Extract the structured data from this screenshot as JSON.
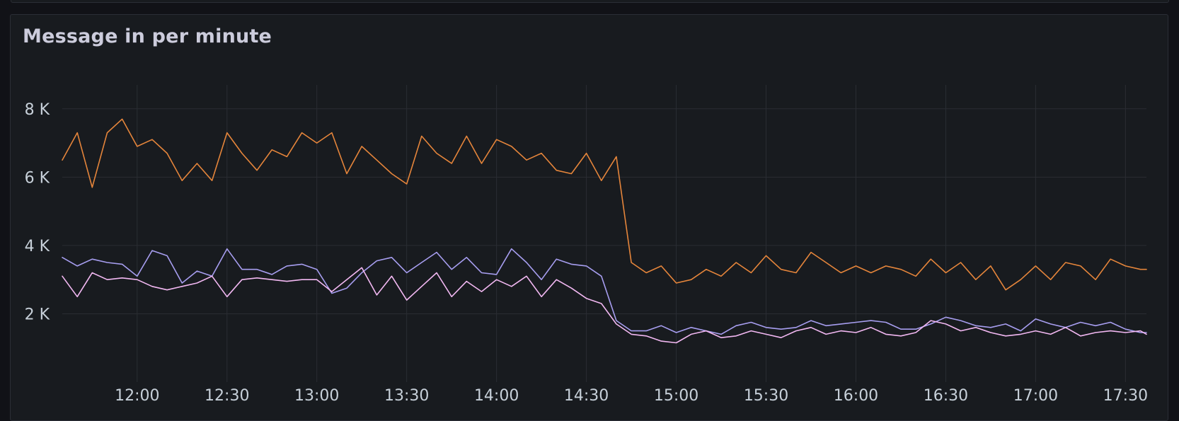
{
  "panel": {
    "title": "Message in per minute"
  },
  "chart_data": {
    "type": "line",
    "title": "Message in per minute",
    "xlabel": "",
    "ylabel": "",
    "x_unit": "time (HH:MM)",
    "xlim": [
      "11:35",
      "17:37"
    ],
    "ylim": [
      0,
      8700
    ],
    "y_ticks": [
      2000,
      4000,
      6000,
      8000
    ],
    "y_tick_labels": [
      "2 K",
      "4 K",
      "6 K",
      "8 K"
    ],
    "x_ticks": [
      "12:00",
      "12:30",
      "13:00",
      "13:30",
      "14:00",
      "14:30",
      "15:00",
      "15:30",
      "16:00",
      "16:30",
      "17:00",
      "17:30"
    ],
    "grid": true,
    "legend": "none",
    "x": [
      "11:35",
      "11:40",
      "11:45",
      "11:50",
      "11:55",
      "12:00",
      "12:05",
      "12:10",
      "12:15",
      "12:20",
      "12:25",
      "12:30",
      "12:35",
      "12:40",
      "12:45",
      "12:50",
      "12:55",
      "13:00",
      "13:05",
      "13:10",
      "13:15",
      "13:20",
      "13:25",
      "13:30",
      "13:35",
      "13:40",
      "13:45",
      "13:50",
      "13:55",
      "14:00",
      "14:05",
      "14:10",
      "14:15",
      "14:20",
      "14:25",
      "14:30",
      "14:35",
      "14:40",
      "14:45",
      "14:50",
      "14:55",
      "15:00",
      "15:05",
      "15:10",
      "15:15",
      "15:20",
      "15:25",
      "15:30",
      "15:35",
      "15:40",
      "15:45",
      "15:50",
      "15:55",
      "16:00",
      "16:05",
      "16:10",
      "16:15",
      "16:20",
      "16:25",
      "16:30",
      "16:35",
      "16:40",
      "16:45",
      "16:50",
      "16:55",
      "17:00",
      "17:05",
      "17:10",
      "17:15",
      "17:20",
      "17:25",
      "17:30",
      "17:35",
      "17:37"
    ],
    "series": [
      {
        "color": "#e5853b",
        "values": [
          6500,
          7300,
          5700,
          7300,
          7700,
          6900,
          7100,
          6700,
          5900,
          6400,
          5900,
          7300,
          6700,
          6200,
          6800,
          6600,
          7300,
          7000,
          7300,
          6100,
          6900,
          6500,
          6100,
          5800,
          7200,
          6700,
          6400,
          7200,
          6400,
          7100,
          6900,
          6500,
          6700,
          6200,
          6100,
          6700,
          5900,
          6600,
          3500,
          3200,
          3400,
          2900,
          3000,
          3300,
          3100,
          3500,
          3200,
          3700,
          3300,
          3200,
          3800,
          3500,
          3200,
          3400,
          3200,
          3400,
          3300,
          3100,
          3600,
          3200,
          3500,
          3000,
          3400,
          2700,
          3000,
          3400,
          3000,
          3500,
          3400,
          3000,
          3600,
          3400,
          3300,
          3300
        ]
      },
      {
        "color": "#a79ef0",
        "values": [
          3650,
          3400,
          3600,
          3500,
          3450,
          3100,
          3850,
          3700,
          2900,
          3250,
          3100,
          3900,
          3300,
          3300,
          3150,
          3400,
          3450,
          3300,
          2600,
          2750,
          3200,
          3550,
          3650,
          3200,
          3500,
          3800,
          3300,
          3650,
          3200,
          3150,
          3900,
          3500,
          3000,
          3600,
          3450,
          3400,
          3100,
          1800,
          1500,
          1500,
          1650,
          1450,
          1600,
          1500,
          1400,
          1650,
          1750,
          1600,
          1550,
          1600,
          1800,
          1650,
          1700,
          1750,
          1800,
          1750,
          1550,
          1550,
          1700,
          1900,
          1800,
          1650,
          1600,
          1700,
          1500,
          1850,
          1700,
          1600,
          1750,
          1650,
          1750,
          1550,
          1450,
          1450
        ]
      },
      {
        "color": "#f2b8f2",
        "values": [
          3100,
          2500,
          3200,
          3000,
          3050,
          3000,
          2800,
          2700,
          2800,
          2900,
          3100,
          2500,
          3000,
          3050,
          3000,
          2950,
          3000,
          3000,
          2650,
          3000,
          3350,
          2550,
          3100,
          2400,
          2800,
          3200,
          2500,
          2950,
          2650,
          3000,
          2800,
          3100,
          2500,
          3000,
          2750,
          2450,
          2300,
          1700,
          1400,
          1350,
          1200,
          1150,
          1400,
          1500,
          1300,
          1350,
          1500,
          1400,
          1300,
          1500,
          1600,
          1400,
          1500,
          1450,
          1600,
          1400,
          1350,
          1450,
          1800,
          1700,
          1500,
          1600,
          1450,
          1350,
          1400,
          1500,
          1400,
          1600,
          1350,
          1450,
          1500,
          1450,
          1500,
          1400
        ]
      }
    ]
  }
}
